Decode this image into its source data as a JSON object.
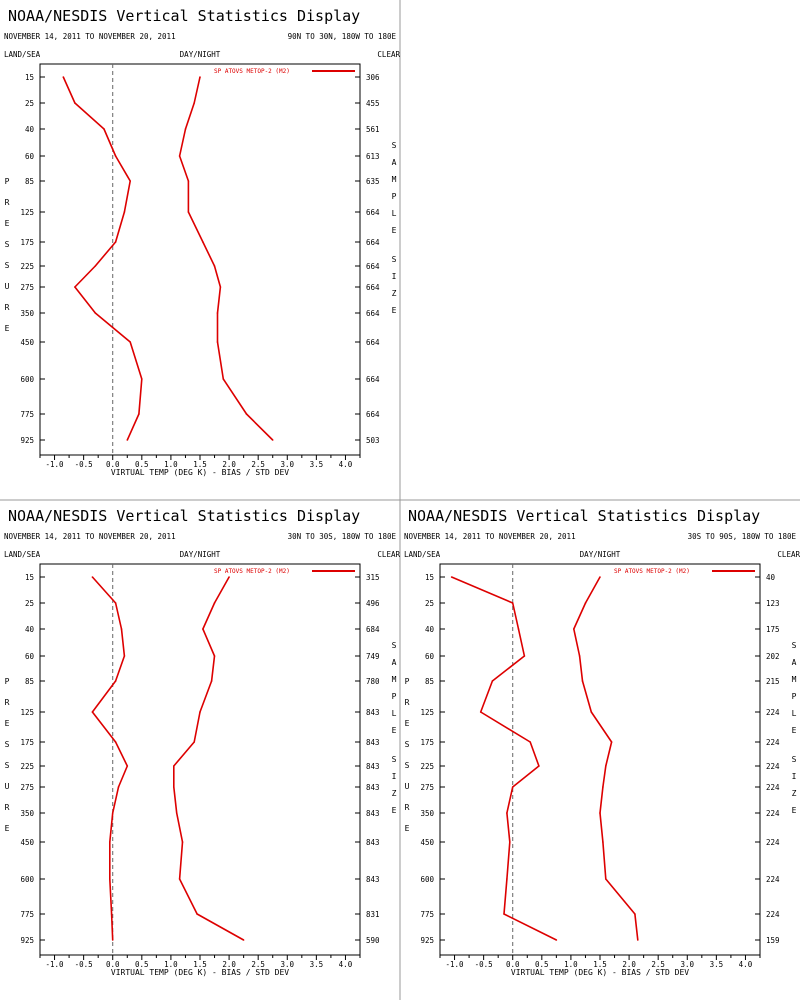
{
  "common": {
    "title": "NOAA/NESDIS Vertical Statistics Display",
    "date_range": "NOVEMBER 14, 2011 TO NOVEMBER 20, 2011",
    "label_land_sea": "LAND/SEA",
    "label_day_night": "DAY/NIGHT",
    "label_clear": "CLEAR",
    "label_pressure": "PRESSURE",
    "label_sample_size": "SAMPLE SIZE",
    "xlabel": "VIRTUAL TEMP (DEG K) - BIAS / STD DEV",
    "legend": "SP ATOVS METOP-2 (M2)",
    "colors": {
      "series": "#dd0000",
      "zero_line": "#666666",
      "frame": "#000000",
      "divider": "#999999"
    }
  },
  "chart_data": [
    {
      "type": "line",
      "region": "90N TO 30N, 180W TO 180E",
      "pressure_levels": [
        "15",
        "25",
        "40",
        "60",
        "85",
        "125",
        "175",
        "225",
        "275",
        "350",
        "450",
        "600",
        "775",
        "925"
      ],
      "sample_size": [
        "306",
        "455",
        "561",
        "613",
        "635",
        "664",
        "664",
        "664",
        "664",
        "664",
        "664",
        "664",
        "664",
        "503"
      ],
      "xticks": [
        "-1.0",
        "-0.5",
        "0.0",
        "0.5",
        "1.0",
        "1.5",
        "2.0",
        "2.5",
        "3.0",
        "3.5",
        "4.0"
      ],
      "xlim": [
        -1.25,
        4.25
      ],
      "series": [
        {
          "name": "SP ATOVS METOP-2 (M2)",
          "role": "bias",
          "values": [
            -0.85,
            -0.65,
            -0.15,
            0.05,
            0.3,
            0.2,
            0.05,
            -0.3,
            -0.65,
            -0.3,
            0.3,
            0.5,
            0.45,
            0.25
          ]
        },
        {
          "name": "SP ATOVS METOP-2 (M2)",
          "role": "std_dev",
          "values": [
            1.5,
            1.4,
            1.25,
            1.15,
            1.3,
            1.3,
            1.55,
            1.75,
            1.85,
            1.8,
            1.8,
            1.9,
            2.3,
            2.75
          ]
        }
      ]
    },
    {
      "type": "line",
      "region": "30N TO 30S, 180W TO 180E",
      "pressure_levels": [
        "15",
        "25",
        "40",
        "60",
        "85",
        "125",
        "175",
        "225",
        "275",
        "350",
        "450",
        "600",
        "775",
        "925"
      ],
      "sample_size": [
        "315",
        "496",
        "684",
        "749",
        "780",
        "843",
        "843",
        "843",
        "843",
        "843",
        "843",
        "843",
        "831",
        "590"
      ],
      "xticks": [
        "-1.0",
        "-0.5",
        "0.0",
        "0.5",
        "1.0",
        "1.5",
        "2.0",
        "2.5",
        "3.0",
        "3.5",
        "4.0"
      ],
      "xlim": [
        -1.25,
        4.25
      ],
      "series": [
        {
          "name": "SP ATOVS METOP-2 (M2)",
          "role": "bias",
          "values": [
            -0.35,
            0.05,
            0.15,
            0.2,
            0.05,
            -0.35,
            0.05,
            0.25,
            0.1,
            0.0,
            -0.05,
            -0.05,
            -0.02,
            0.0
          ]
        },
        {
          "name": "SP ATOVS METOP-2 (M2)",
          "role": "std_dev",
          "values": [
            2.0,
            1.75,
            1.55,
            1.75,
            1.7,
            1.5,
            1.4,
            1.05,
            1.05,
            1.1,
            1.2,
            1.15,
            1.45,
            2.25
          ]
        }
      ]
    },
    {
      "type": "line",
      "region": "30S TO 90S, 180W TO 180E",
      "pressure_levels": [
        "15",
        "25",
        "40",
        "60",
        "85",
        "125",
        "175",
        "225",
        "275",
        "350",
        "450",
        "600",
        "775",
        "925"
      ],
      "sample_size": [
        "40",
        "123",
        "175",
        "202",
        "215",
        "224",
        "224",
        "224",
        "224",
        "224",
        "224",
        "224",
        "224",
        "159"
      ],
      "xticks": [
        "-1.0",
        "-0.5",
        "0.0",
        "0.5",
        "1.0",
        "1.5",
        "2.0",
        "2.5",
        "3.0",
        "3.5",
        "4.0"
      ],
      "xlim": [
        -1.25,
        4.25
      ],
      "series": [
        {
          "name": "SP ATOVS METOP-2 (M2)",
          "role": "bias",
          "values": [
            -1.05,
            0.0,
            0.1,
            0.2,
            -0.35,
            -0.55,
            0.3,
            0.45,
            0.0,
            -0.1,
            -0.05,
            -0.1,
            -0.15,
            0.75
          ]
        },
        {
          "name": "SP ATOVS METOP-2 (M2)",
          "role": "std_dev",
          "values": [
            1.5,
            1.25,
            1.05,
            1.15,
            1.2,
            1.35,
            1.7,
            1.6,
            1.55,
            1.5,
            1.55,
            1.6,
            2.1,
            2.15
          ]
        }
      ]
    }
  ]
}
